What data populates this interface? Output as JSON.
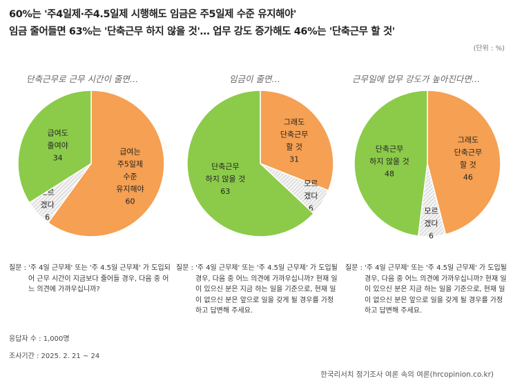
{
  "title_line1": "60%는 '주4일제·주4.5일제 시행해도 임금은 주5일제 수준 유지해야'",
  "title_line2": "임금 줄어들면 63%는 '단축근무 하지 않을 것'… 업무 강도 증가해도 46%는 '단축근무 할 것'",
  "unit": "(단위 : %)",
  "colors": {
    "orange": "#F5A052",
    "green": "#8CCB4A",
    "gray": "#DCDCDC"
  },
  "chart_data": [
    {
      "type": "pie",
      "title": "단축근무로 근무 시간이 줄면…",
      "slices": [
        {
          "label": [
            "급여는",
            "주5일제",
            "수준",
            "유지해야"
          ],
          "value": 60,
          "color": "orange"
        },
        {
          "label": [
            "모르",
            "겠다"
          ],
          "value": 6,
          "color": "gray"
        },
        {
          "label": [
            "급여도",
            "줄여야"
          ],
          "value": 34,
          "color": "green"
        }
      ]
    },
    {
      "type": "pie",
      "title": "임금이 줄면…",
      "slices": [
        {
          "label": [
            "그래도",
            "단축근무",
            "할 것"
          ],
          "value": 31,
          "color": "orange"
        },
        {
          "label": [
            "모르",
            "겠다"
          ],
          "value": 6,
          "color": "gray"
        },
        {
          "label": [
            "단축근무",
            "하지 않을 것"
          ],
          "value": 63,
          "color": "green"
        }
      ]
    },
    {
      "type": "pie",
      "title": "근무일에 업무 강도가 높아진다면…",
      "slices": [
        {
          "label": [
            "그래도",
            "단축근무",
            "할 것"
          ],
          "value": 46,
          "color": "orange"
        },
        {
          "label": [
            "모르",
            "겠다"
          ],
          "value": 6,
          "color": "gray"
        },
        {
          "label": [
            "단축근무",
            "하지 않을 것"
          ],
          "value": 48,
          "color": "green"
        }
      ]
    }
  ],
  "questions": [
    {
      "key": "질문 :",
      "text": "'주 4일 근무제' 또는 '주 4.5일 근무제' 가 도입되어 근무 시간이 지금보다 줄어들 경우, 다음 중 어느 의견에 가까우십니까?"
    },
    {
      "key": "질문 :",
      "text": "'주 4일 근무제' 또는 '주 4.5일 근무제' 가 도입될 경우, 다음 중 어느 의견에 가까우십니까? 현재 일이 있으신 분은 지금 하는 일을 기준으로, 현재 일이 없으신 분은 앞으로 일을 갖게 될 경우를 가정하고 답변해 주세요."
    },
    {
      "key": "질문 :",
      "text": "'주 4일 근무제' 또는 '주 4.5일 근무제' 가 도입될 경우, 다음 중 어느 의견에 가까우십니까? 현재 일이 있으신 분은 지금 하는 일을 기준으로, 현재 일이 없으신 분은 앞으로 일을 갖게 될 경우를 가정하고 답변해 주세요."
    }
  ],
  "respondents": "응답자 수 : 1,000명",
  "period": "조사기간 : 2025. 2. 21 ~ 24",
  "source": "한국리서치 정기조사 여론 속의 여론(hrcopinion.co.kr)"
}
